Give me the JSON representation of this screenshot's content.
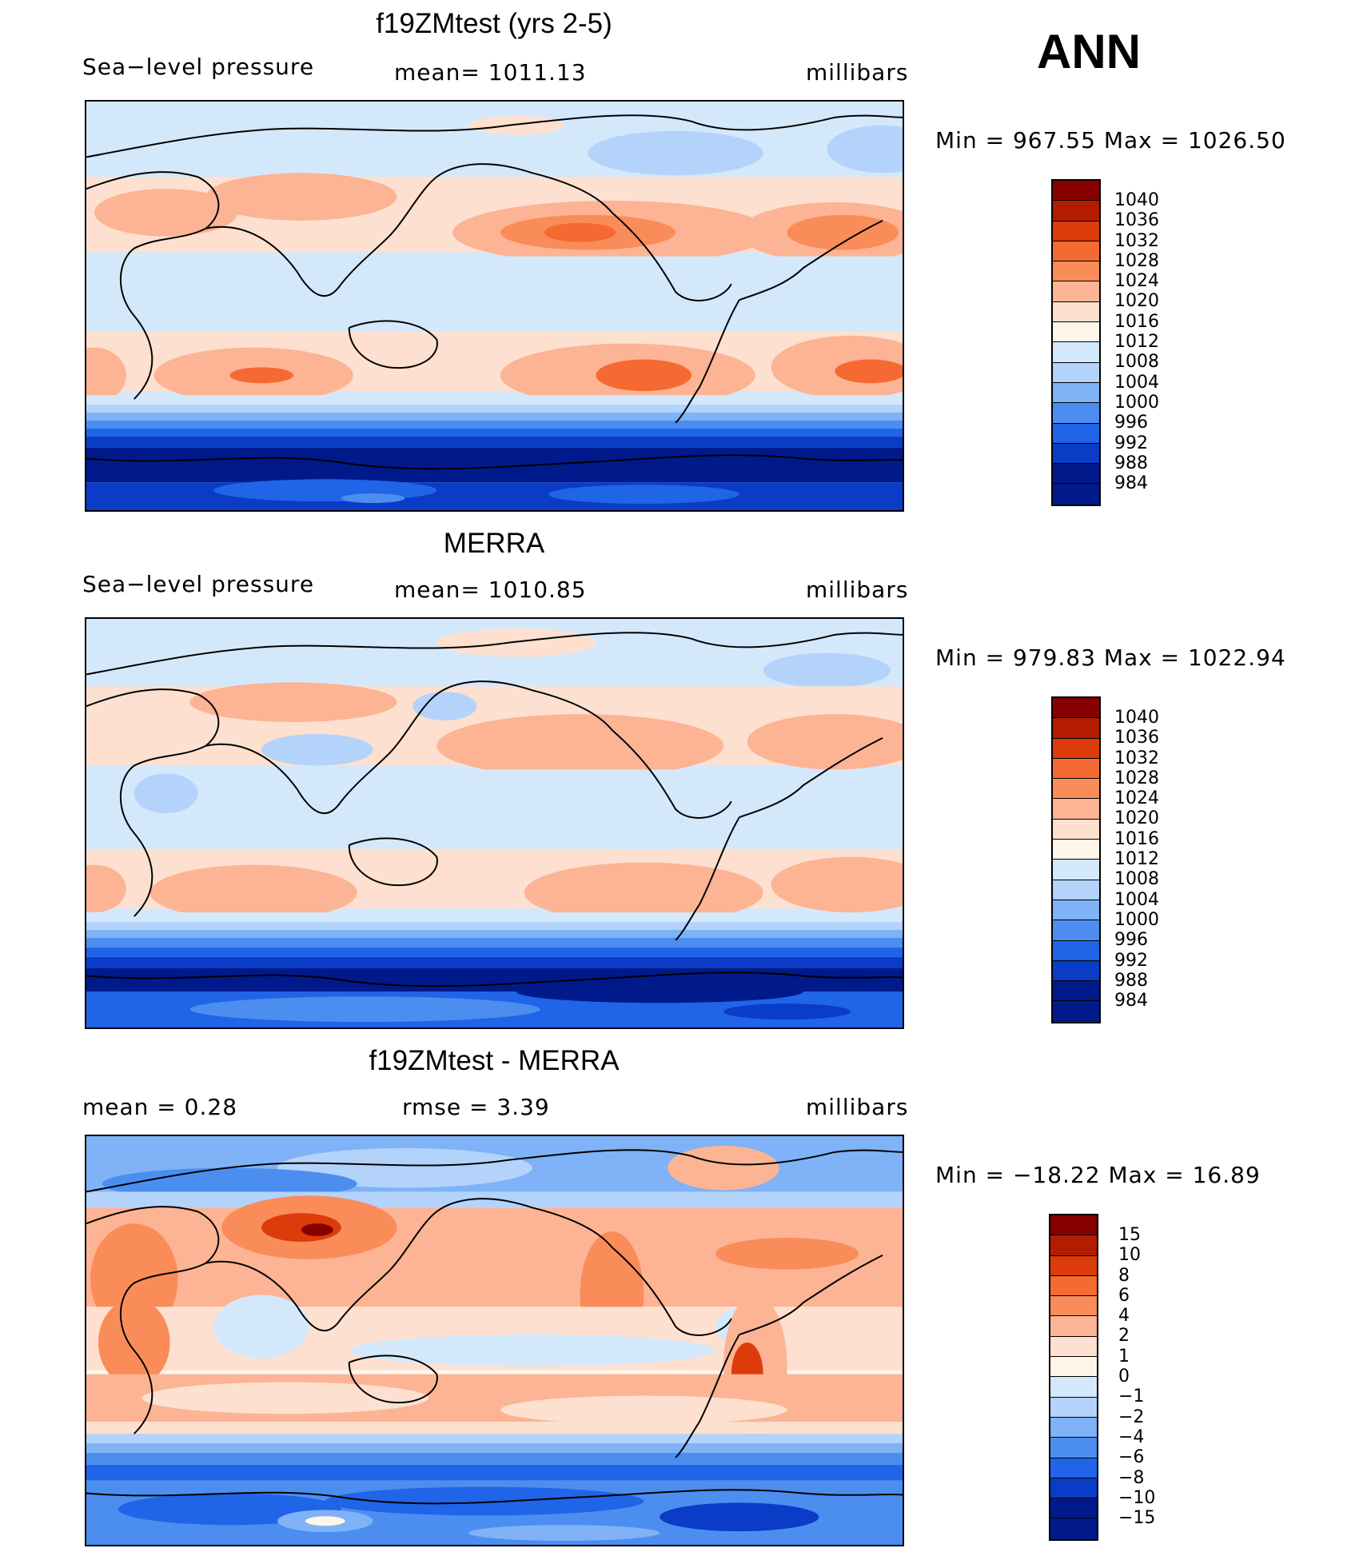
{
  "season": "ANN",
  "panels": [
    {
      "title": "f19ZMtest (yrs 2-5)",
      "left_label": "Sea−level pressure",
      "center_label": "mean=  1011.13",
      "units": "millibars",
      "minmax": "Min  =  967.55  Max  =  1026.50",
      "colorbar": {
        "labels": [
          "1040",
          "1036",
          "1032",
          "1028",
          "1024",
          "1020",
          "1016",
          "1012",
          "1008",
          "1004",
          "1000",
          "996",
          "992",
          "988",
          "984"
        ],
        "colors": [
          "#870000",
          "#b41c00",
          "#dc3c0a",
          "#f56a32",
          "#fa8c5a",
          "#fcb494",
          "#fde0cf",
          "#fff6ea",
          "#d4e8fc",
          "#b3d3fb",
          "#7fb2f6",
          "#4b8ef0",
          "#2064e8",
          "#0a3cc8",
          "#001a8c"
        ]
      }
    },
    {
      "title": "MERRA",
      "left_label": "Sea−level pressure",
      "center_label": "mean=  1010.85",
      "units": "millibars",
      "minmax": "Min  =  979.83  Max  =  1022.94",
      "colorbar": {
        "labels": [
          "1040",
          "1036",
          "1032",
          "1028",
          "1024",
          "1020",
          "1016",
          "1012",
          "1008",
          "1004",
          "1000",
          "996",
          "992",
          "988",
          "984"
        ],
        "colors": [
          "#870000",
          "#b41c00",
          "#dc3c0a",
          "#f56a32",
          "#fa8c5a",
          "#fcb494",
          "#fde0cf",
          "#fff6ea",
          "#d4e8fc",
          "#b3d3fb",
          "#7fb2f6",
          "#4b8ef0",
          "#2064e8",
          "#0a3cc8",
          "#001a8c"
        ]
      }
    },
    {
      "title": "f19ZMtest - MERRA",
      "left_label": "mean  =      0.28",
      "center_label": "rmse  =      3.39",
      "units": "millibars",
      "minmax": "Min  =  −18.22  Max  =     16.89",
      "colorbar": {
        "labels": [
          "15",
          "10",
          "8",
          "6",
          "4",
          "2",
          "1",
          "0",
          "−1",
          "−2",
          "−4",
          "−6",
          "−8",
          "−10",
          "−15"
        ],
        "colors": [
          "#870000",
          "#b41c00",
          "#dc3c0a",
          "#f56a32",
          "#fa8c5a",
          "#fcb494",
          "#fde0cf",
          "#fff6ea",
          "#d4e8fc",
          "#b3d3fb",
          "#7fb2f6",
          "#4b8ef0",
          "#2064e8",
          "#0a3cc8",
          "#001a8c"
        ]
      }
    }
  ]
}
